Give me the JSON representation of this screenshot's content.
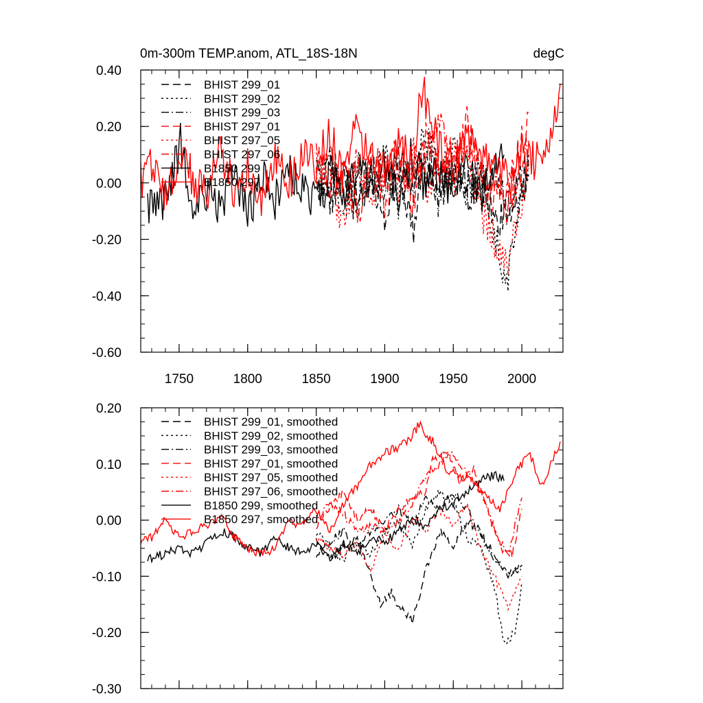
{
  "chart_data": [
    {
      "type": "line",
      "title": "0m-300m TEMP.anom, ATL_18S-18N",
      "units": "degC",
      "xlim": [
        1722,
        2030
      ],
      "ylim": [
        -0.6,
        0.4
      ],
      "xticks": [
        1750,
        1800,
        1850,
        1900,
        1950,
        2000
      ],
      "yticks": [
        0.4,
        0.2,
        0.0,
        -0.2,
        -0.4,
        -0.6
      ],
      "ytick_labels": [
        "0.40",
        "0.20",
        "0.00",
        "-0.20",
        "-0.40",
        "-0.60"
      ],
      "grid": false,
      "legend_position": "top-left",
      "series": [
        {
          "name": "BHIST 299_01",
          "color": "#000000",
          "dash": "dashed",
          "x": [
            1850,
            1860,
            1870,
            1880,
            1890,
            1900,
            1910,
            1920,
            1930,
            1940,
            1950,
            1960,
            1970,
            1980,
            1990,
            2005
          ],
          "values": [
            0.02,
            -0.05,
            0.04,
            -0.08,
            0.01,
            -0.1,
            0.05,
            -0.18,
            0.08,
            -0.02,
            0.06,
            -0.04,
            0.03,
            -0.15,
            -0.1,
            0.06
          ]
        },
        {
          "name": "BHIST 299_02",
          "color": "#000000",
          "dash": "dotted",
          "x": [
            1850,
            1860,
            1870,
            1880,
            1890,
            1900,
            1910,
            1920,
            1930,
            1940,
            1950,
            1960,
            1970,
            1980,
            1990,
            2005
          ],
          "values": [
            0.05,
            0.0,
            -0.07,
            0.06,
            -0.04,
            0.1,
            -0.06,
            0.04,
            0.18,
            0.01,
            0.12,
            -0.06,
            0.05,
            -0.2,
            -0.35,
            0.1
          ]
        },
        {
          "name": "BHIST 299_03",
          "color": "#000000",
          "dash": "dashdot",
          "x": [
            1850,
            1860,
            1870,
            1880,
            1890,
            1900,
            1910,
            1920,
            1930,
            1940,
            1950,
            1960,
            1970,
            1980,
            1990,
            2005
          ],
          "values": [
            -0.03,
            0.06,
            0.02,
            -0.09,
            0.05,
            -0.03,
            0.08,
            -0.02,
            0.04,
            -0.07,
            0.05,
            0.02,
            -0.08,
            0.04,
            -0.12,
            0.03
          ]
        },
        {
          "name": "BHIST 297_01",
          "color": "#ff0000",
          "dash": "dashed",
          "x": [
            1850,
            1860,
            1870,
            1880,
            1890,
            1900,
            1910,
            1920,
            1930,
            1940,
            1950,
            1960,
            1970,
            1980,
            1990,
            2005
          ],
          "values": [
            0.1,
            -0.04,
            0.08,
            -0.12,
            0.09,
            0.02,
            0.12,
            -0.06,
            0.15,
            0.05,
            0.1,
            0.2,
            0.02,
            -0.08,
            -0.05,
            0.25
          ]
        },
        {
          "name": "BHIST 297_05",
          "color": "#ff0000",
          "dash": "dotted",
          "x": [
            1850,
            1860,
            1870,
            1880,
            1890,
            1900,
            1910,
            1920,
            1930,
            1940,
            1950,
            1960,
            1970,
            1980,
            1990,
            2005
          ],
          "values": [
            0.06,
            0.0,
            -0.15,
            0.05,
            -0.08,
            0.06,
            -0.04,
            0.1,
            -0.02,
            0.08,
            0.0,
            0.1,
            -0.1,
            -0.2,
            -0.28,
            0.05
          ]
        },
        {
          "name": "BHIST 297_06",
          "color": "#ff0000",
          "dash": "dashdot",
          "x": [
            1850,
            1860,
            1870,
            1880,
            1890,
            1900,
            1910,
            1920,
            1930,
            1940,
            1950,
            1960,
            1970,
            1980,
            1990,
            2005
          ],
          "values": [
            0.0,
            0.08,
            -0.02,
            0.12,
            0.04,
            -0.05,
            0.07,
            0.02,
            0.09,
            0.22,
            0.06,
            0.12,
            0.04,
            0.02,
            -0.08,
            0.15
          ]
        },
        {
          "name": "B1850 299",
          "color": "#000000",
          "dash": "solid",
          "x": [
            1727,
            1740,
            1751,
            1760,
            1770,
            1780,
            1790,
            1800,
            1810,
            1820,
            1830,
            1840,
            1850,
            1860,
            1870,
            1880,
            1890,
            1900,
            1910,
            1920,
            1930,
            1940,
            1950,
            1960,
            1970,
            1980,
            1987
          ],
          "values": [
            -0.1,
            -0.06,
            0.14,
            -0.12,
            -0.03,
            -0.08,
            0.04,
            -0.12,
            0.02,
            -0.06,
            0.05,
            -0.02,
            -0.08,
            0.03,
            -0.05,
            0.06,
            -0.03,
            0.08,
            -0.04,
            0.1,
            -0.02,
            0.05,
            -0.04,
            0.08,
            -0.06,
            0.04,
            0.1
          ]
        },
        {
          "name": "B1850 297",
          "color": "#ff0000",
          "dash": "solid",
          "x": [
            1722,
            1730,
            1740,
            1750,
            1760,
            1770,
            1780,
            1790,
            1800,
            1810,
            1820,
            1830,
            1840,
            1850,
            1860,
            1870,
            1880,
            1890,
            1900,
            1910,
            1920,
            1927,
            1940,
            1950,
            1960,
            1970,
            1980,
            1990,
            2000,
            2010,
            2020,
            2028
          ],
          "values": [
            0.0,
            0.08,
            -0.05,
            0.1,
            0.02,
            -0.06,
            0.14,
            -0.04,
            0.06,
            -0.08,
            0.1,
            0.0,
            0.12,
            0.06,
            0.18,
            0.02,
            0.2,
            0.1,
            0.04,
            0.15,
            0.06,
            0.34,
            0.12,
            0.04,
            0.16,
            0.1,
            0.06,
            0.0,
            0.1,
            0.08,
            0.14,
            0.35
          ]
        }
      ]
    },
    {
      "type": "line",
      "title": "",
      "units": "",
      "xlim": [
        1722,
        2030
      ],
      "ylim": [
        -0.3,
        0.2
      ],
      "xticks": [
        1750,
        1800,
        1850,
        1900,
        1950,
        2000
      ],
      "yticks": [
        0.2,
        0.1,
        0.0,
        -0.1,
        -0.2,
        -0.3
      ],
      "ytick_labels": [
        "0.20",
        "0.10",
        "0.00",
        "-0.10",
        "-0.20",
        "-0.30"
      ],
      "grid": false,
      "legend_position": "top-left",
      "series": [
        {
          "name": "BHIST 299_01, smoothed",
          "color": "#000000",
          "dash": "dashed",
          "x": [
            1850,
            1860,
            1870,
            1880,
            1890,
            1897,
            1905,
            1912,
            1920,
            1930,
            1940,
            1950,
            1960,
            1970,
            1980,
            1990,
            2000
          ],
          "values": [
            -0.04,
            -0.07,
            -0.05,
            -0.03,
            -0.1,
            -0.15,
            -0.13,
            -0.16,
            -0.18,
            -0.09,
            -0.02,
            -0.05,
            0.0,
            -0.02,
            -0.07,
            -0.1,
            -0.08
          ]
        },
        {
          "name": "BHIST 299_02, smoothed",
          "color": "#000000",
          "dash": "dotted",
          "x": [
            1850,
            1860,
            1870,
            1880,
            1890,
            1900,
            1910,
            1920,
            1930,
            1940,
            1950,
            1960,
            1970,
            1980,
            1987,
            1995,
            2000
          ],
          "values": [
            -0.02,
            -0.05,
            -0.07,
            -0.04,
            -0.06,
            -0.02,
            0.0,
            -0.05,
            0.02,
            0.05,
            0.03,
            -0.03,
            -0.05,
            -0.12,
            -0.22,
            -0.2,
            -0.11
          ]
        },
        {
          "name": "BHIST 299_03, smoothed",
          "color": "#000000",
          "dash": "dashdot",
          "x": [
            1850,
            1860,
            1870,
            1880,
            1890,
            1900,
            1910,
            1920,
            1930,
            1940,
            1950,
            1960,
            1970,
            1980,
            1990,
            2000
          ],
          "values": [
            -0.06,
            -0.04,
            -0.02,
            -0.05,
            -0.02,
            0.0,
            0.02,
            -0.01,
            0.04,
            0.02,
            0.05,
            0.02,
            -0.03,
            -0.06,
            -0.1,
            -0.08
          ]
        },
        {
          "name": "BHIST 297_01, smoothed",
          "color": "#ff0000",
          "dash": "dashed",
          "x": [
            1850,
            1860,
            1870,
            1880,
            1890,
            1900,
            1910,
            1920,
            1930,
            1935,
            1945,
            1955,
            1965,
            1975,
            1985,
            1993,
            2000
          ],
          "values": [
            -0.01,
            0.02,
            0.05,
            0.0,
            0.02,
            -0.02,
            0.02,
            0.04,
            0.05,
            0.11,
            0.12,
            0.07,
            0.09,
            0.02,
            -0.05,
            -0.06,
            0.02
          ]
        },
        {
          "name": "BHIST 297_05, smoothed",
          "color": "#ff0000",
          "dash": "dotted",
          "x": [
            1850,
            1860,
            1870,
            1880,
            1890,
            1900,
            1910,
            1920,
            1930,
            1940,
            1950,
            1960,
            1970,
            1980,
            1990,
            2000
          ],
          "values": [
            -0.03,
            -0.05,
            -0.06,
            -0.04,
            -0.09,
            -0.03,
            -0.05,
            0.0,
            -0.02,
            0.02,
            -0.01,
            0.03,
            -0.05,
            -0.1,
            -0.16,
            -0.1
          ]
        },
        {
          "name": "BHIST 297_06, smoothed",
          "color": "#ff0000",
          "dash": "dashdot",
          "x": [
            1850,
            1860,
            1870,
            1880,
            1890,
            1900,
            1910,
            1920,
            1930,
            1940,
            1950,
            1960,
            1970,
            1980,
            1990,
            2000
          ],
          "values": [
            0.0,
            0.03,
            0.01,
            -0.02,
            -0.01,
            -0.02,
            0.0,
            0.03,
            0.08,
            0.1,
            0.12,
            0.08,
            0.05,
            -0.02,
            -0.06,
            0.04
          ]
        },
        {
          "name": "B1850 299, smoothed",
          "color": "#000000",
          "dash": "solid",
          "x": [
            1727,
            1740,
            1750,
            1760,
            1770,
            1780,
            1790,
            1800,
            1810,
            1820,
            1830,
            1840,
            1850,
            1860,
            1870,
            1880,
            1890,
            1900,
            1910,
            1920,
            1930,
            1940,
            1950,
            1960,
            1970,
            1980,
            1987
          ],
          "values": [
            -0.07,
            -0.06,
            -0.05,
            -0.06,
            -0.04,
            -0.02,
            -0.03,
            -0.05,
            -0.06,
            -0.03,
            -0.05,
            -0.06,
            -0.04,
            -0.07,
            -0.04,
            -0.06,
            -0.03,
            -0.04,
            -0.02,
            0.0,
            -0.01,
            0.02,
            0.03,
            0.05,
            0.07,
            0.08,
            0.07
          ]
        },
        {
          "name": "B1850 297, smoothed",
          "color": "#ff0000",
          "dash": "solid",
          "x": [
            1722,
            1730,
            1740,
            1750,
            1760,
            1770,
            1780,
            1790,
            1800,
            1810,
            1820,
            1830,
            1840,
            1850,
            1860,
            1870,
            1880,
            1890,
            1900,
            1910,
            1920,
            1925,
            1935,
            1945,
            1955,
            1965,
            1975,
            1985,
            1995,
            2005,
            2015,
            2028
          ],
          "values": [
            -0.04,
            -0.03,
            0.0,
            -0.03,
            -0.02,
            -0.01,
            0.01,
            -0.03,
            -0.05,
            -0.06,
            -0.05,
            0.0,
            -0.01,
            0.02,
            -0.02,
            0.03,
            0.06,
            0.1,
            0.12,
            0.13,
            0.15,
            0.17,
            0.14,
            0.09,
            0.08,
            0.07,
            0.04,
            0.02,
            0.08,
            0.12,
            0.06,
            0.14
          ]
        }
      ]
    }
  ]
}
